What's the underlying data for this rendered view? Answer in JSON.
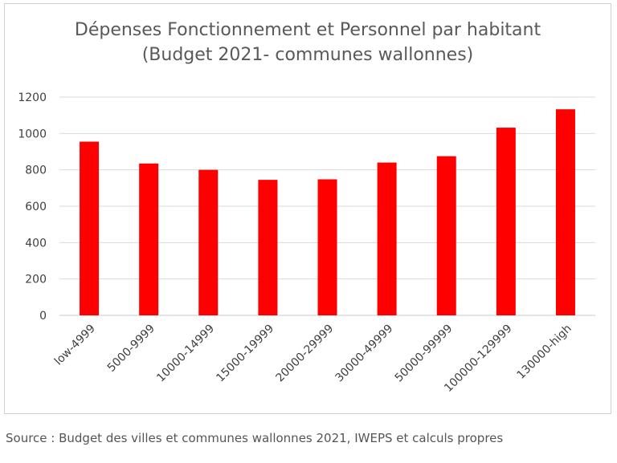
{
  "chart_data": {
    "type": "bar",
    "title": "Dépenses Fonctionnement et Personnel par habitant",
    "subtitle": "(Budget 2021- communes wallonnes)",
    "categories": [
      "low-4999",
      "5000-9999",
      "10000-14999",
      "15000-19999",
      "20000-29999",
      "30000-49999",
      "50000-99999",
      "100000-129999",
      "130000-high"
    ],
    "values": [
      955,
      835,
      800,
      745,
      748,
      840,
      875,
      1032,
      1133
    ],
    "ylim": [
      0,
      1200
    ],
    "yticks": [
      0,
      200,
      400,
      600,
      800,
      1000,
      1200
    ],
    "grid": true,
    "bar_color": "#ff0000"
  },
  "source": "Source : Budget des villes et communes wallonnes 2021, IWEPS et calculs propres"
}
